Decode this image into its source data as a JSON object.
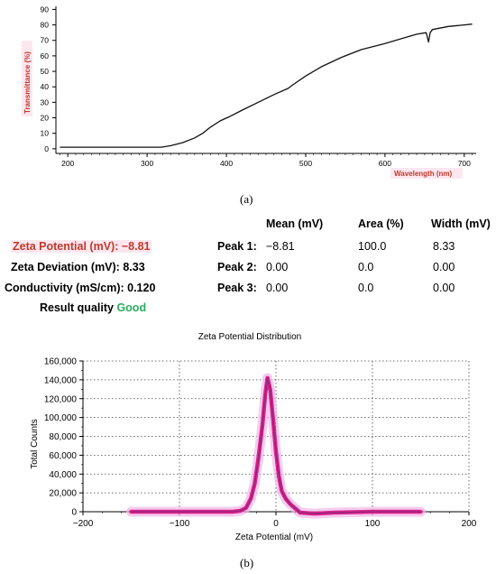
{
  "chart_data": [
    {
      "type": "line",
      "panel": "(a)",
      "xlabel": "Wavelength (nm)",
      "ylabel": "Transmittance (%)",
      "xlim": [
        185,
        715
      ],
      "ylim": [
        -3,
        92
      ],
      "xticks": [
        200,
        300,
        400,
        500,
        600,
        700
      ],
      "yticks": [
        0,
        10,
        20,
        30,
        40,
        50,
        60,
        70,
        80,
        90
      ],
      "series": [
        {
          "x": [
            190,
            250,
            300,
            318,
            330,
            345,
            360,
            370,
            380,
            392,
            405,
            420,
            440,
            460,
            478,
            483,
            500,
            520,
            545,
            570,
            600,
            620,
            640,
            652,
            655,
            657,
            660,
            680,
            700,
            710
          ],
          "y": [
            1,
            1,
            1,
            1,
            2,
            4,
            7,
            10,
            14,
            18,
            21,
            25,
            30,
            35,
            39,
            41,
            47,
            53,
            59,
            64,
            68,
            71,
            74,
            75,
            69,
            75,
            77,
            79,
            80,
            80.5
          ]
        }
      ]
    },
    {
      "type": "line",
      "title": "Zeta Potential Distribution",
      "xlabel": "Zeta Potential (mV)",
      "ylabel": "Total Counts",
      "xlim": [
        -200,
        200
      ],
      "ylim": [
        0,
        160000
      ],
      "xticks": [
        -200,
        -100,
        0,
        100,
        200
      ],
      "yticks": [
        0,
        20000,
        40000,
        60000,
        80000,
        100000,
        120000,
        140000,
        160000
      ],
      "series": [
        {
          "x": [
            -150,
            -60,
            -45,
            -37,
            -31,
            -26,
            -22,
            -18,
            -14,
            -11,
            -8.8,
            -6,
            -3,
            0,
            3,
            6,
            10,
            15,
            25,
            40,
            60,
            100,
            150
          ],
          "y": [
            0,
            0,
            0,
            1000,
            4000,
            14000,
            30000,
            58000,
            92000,
            125000,
            142000,
            130000,
            98000,
            64000,
            38000,
            22000,
            14000,
            8000,
            -1000,
            -2000,
            -1000,
            0,
            0
          ]
        }
      ]
    }
  ],
  "captions": {
    "a": "(a)",
    "b": "(b)"
  },
  "axis_labels": {
    "transmittance": "Transmittance (%)",
    "wavelength": "Wavelength (nm)",
    "zeta_title": "Zeta Potential Distribution",
    "total_counts": "Total Counts",
    "zeta_x": "Zeta Potential (mV)"
  },
  "y_tick_labels_b": [
    "0",
    "20,000",
    "40,000",
    "60,000",
    "80,000",
    "100,000",
    "120,000",
    "140,000",
    "160,000"
  ],
  "results": {
    "zeta_potential": "Zeta Potential (mV): −8.81",
    "zeta_deviation": "Zeta Deviation (mV): 8.33",
    "conductivity": "Conductivity (mS/cm): 0.120",
    "quality_label": "Result quality",
    "quality_value": "Good"
  },
  "peaks_table": {
    "headers": [
      "Mean (mV)",
      "Area (%)",
      "Width (mV)"
    ],
    "rows": [
      {
        "label": "Peak 1:",
        "mean": "−8.81",
        "area": "100.0",
        "width": "8.33"
      },
      {
        "label": "Peak 2:",
        "mean": "0.00",
        "area": "0.0",
        "width": "0.00"
      },
      {
        "label": "Peak 3:",
        "mean": "0.00",
        "area": "0.0",
        "width": "0.00"
      }
    ]
  },
  "colors": {
    "curve_a": "#111111",
    "curve_b": "#e0218a",
    "curve_b_core": "#7b2a78",
    "curve_b_halo": "#f1b6ea",
    "axis_label_red": "#c0392b",
    "good_green": "#27ae60"
  }
}
